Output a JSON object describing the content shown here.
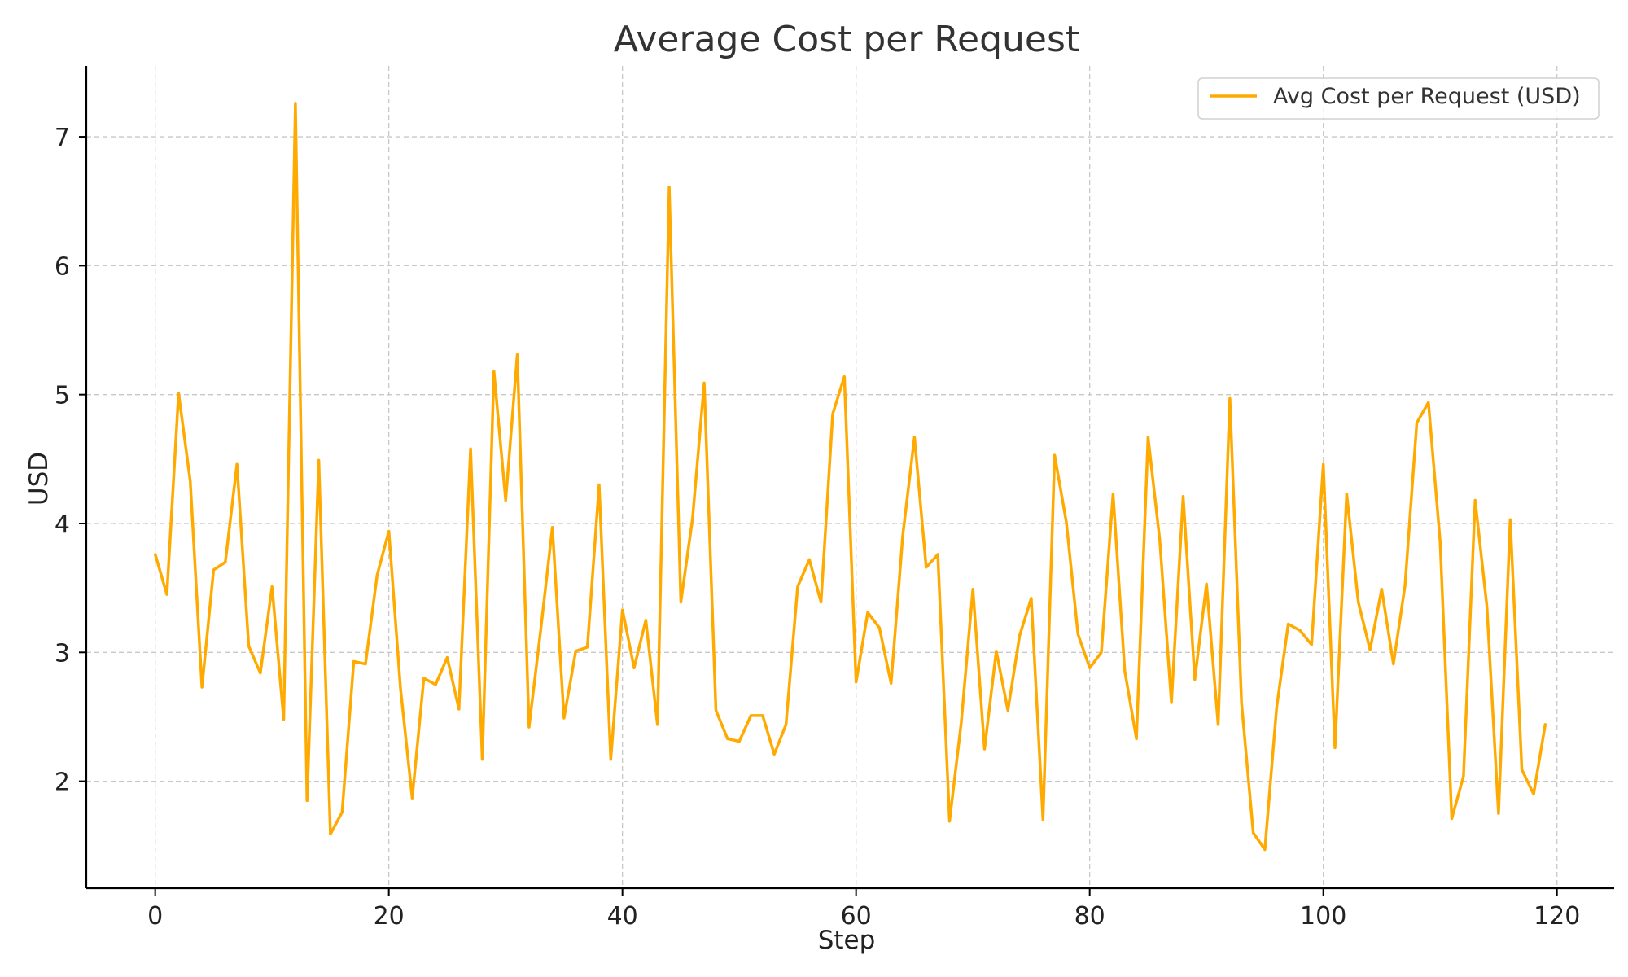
{
  "chart_data": {
    "type": "line",
    "title": "Average Cost per Request",
    "xlabel": "Step",
    "ylabel": "USD",
    "xlim": [
      -5.9,
      124.9
    ],
    "ylim": [
      1.17,
      7.55
    ],
    "xticks": [
      0,
      20,
      40,
      60,
      80,
      100,
      120
    ],
    "yticks": [
      2,
      3,
      4,
      5,
      6,
      7
    ],
    "grid": true,
    "legend_position": "top-right",
    "colors": {
      "series": "#FFAA00"
    },
    "series": [
      {
        "name": "Avg Cost per Request (USD)",
        "x": [
          0,
          1,
          2,
          3,
          4,
          5,
          6,
          7,
          8,
          9,
          10,
          11,
          12,
          13,
          14,
          15,
          16,
          17,
          18,
          19,
          20,
          21,
          22,
          23,
          24,
          25,
          26,
          27,
          28,
          29,
          30,
          31,
          32,
          33,
          34,
          35,
          36,
          37,
          38,
          39,
          40,
          41,
          42,
          43,
          44,
          45,
          46,
          47,
          48,
          49,
          50,
          51,
          52,
          53,
          54,
          55,
          56,
          57,
          58,
          59,
          60,
          61,
          62,
          63,
          64,
          65,
          66,
          67,
          68,
          69,
          70,
          71,
          72,
          73,
          74,
          75,
          76,
          77,
          78,
          79,
          80,
          81,
          82,
          83,
          84,
          85,
          86,
          87,
          88,
          89,
          90,
          91,
          92,
          93,
          94,
          95,
          96,
          97,
          98,
          99,
          100,
          101,
          102,
          103,
          104,
          105,
          106,
          107,
          108,
          109,
          110,
          111,
          112,
          113,
          114,
          115,
          116,
          117,
          118,
          119
        ],
        "values": [
          3.76,
          3.45,
          5.01,
          4.33,
          2.73,
          3.64,
          3.7,
          4.46,
          3.05,
          2.84,
          3.51,
          2.48,
          7.26,
          1.85,
          4.49,
          1.59,
          1.76,
          2.93,
          2.91,
          3.6,
          3.94,
          2.72,
          1.87,
          2.8,
          2.75,
          2.96,
          2.56,
          4.58,
          2.17,
          5.18,
          4.18,
          5.31,
          2.42,
          3.17,
          3.97,
          2.49,
          3.01,
          3.04,
          4.3,
          2.17,
          3.33,
          2.88,
          3.25,
          2.44,
          6.61,
          3.39,
          4.04,
          5.09,
          2.55,
          2.33,
          2.31,
          2.51,
          2.51,
          2.21,
          2.44,
          3.51,
          3.72,
          3.39,
          4.85,
          5.14,
          2.77,
          3.31,
          3.19,
          2.76,
          3.91,
          4.67,
          3.66,
          3.76,
          1.69,
          2.45,
          3.49,
          2.25,
          3.01,
          2.55,
          3.13,
          3.42,
          1.7,
          4.53,
          4.01,
          3.14,
          2.88,
          3.0,
          4.23,
          2.86,
          2.33,
          4.67,
          3.87,
          2.61,
          4.21,
          2.79,
          3.53,
          2.44,
          4.97,
          2.61,
          1.6,
          1.47,
          2.57,
          3.22,
          3.17,
          3.06,
          4.46,
          2.26,
          4.23,
          3.39,
          3.02,
          3.49,
          2.91,
          3.52,
          4.78,
          4.94,
          3.86,
          1.71,
          2.04,
          4.18,
          3.36,
          1.75,
          4.03,
          2.09,
          1.9,
          2.44
        ]
      }
    ]
  }
}
